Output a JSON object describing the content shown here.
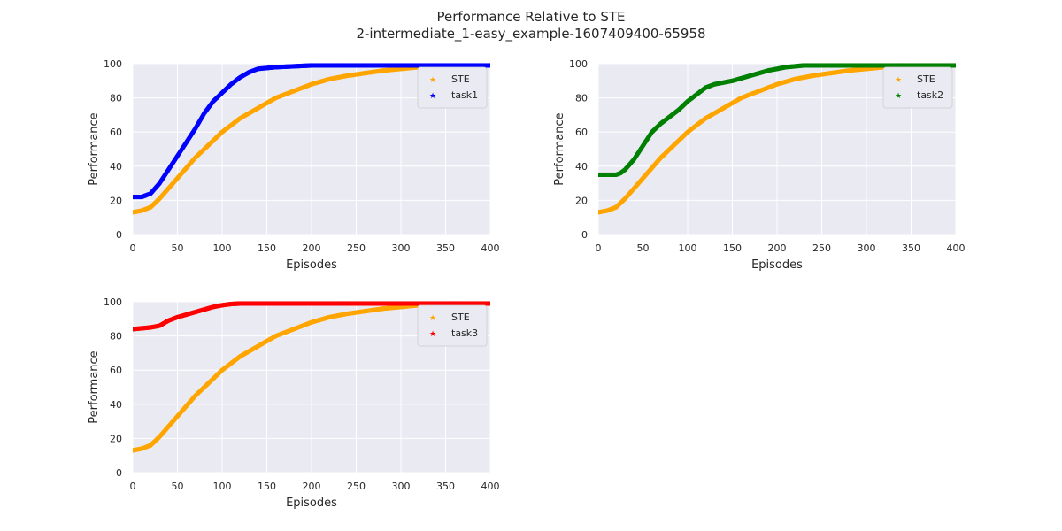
{
  "figure": {
    "title": "Performance Relative to STE",
    "subtitle": "2-intermediate_1-easy_example-1607409400-65958"
  },
  "colors": {
    "STE": "#ffa500",
    "task1": "#0000ff",
    "task2": "#008000",
    "task3": "#ff0000",
    "axes_bg": "#eaeaf2",
    "grid": "#ffffff"
  },
  "chart_data": [
    {
      "type": "scatter",
      "xlabel": "Episodes",
      "ylabel": "Performance",
      "xlim": [
        0,
        400
      ],
      "ylim": [
        0,
        100
      ],
      "xticks": [
        0,
        50,
        100,
        150,
        200,
        250,
        300,
        350,
        400
      ],
      "yticks": [
        0,
        20,
        40,
        60,
        80,
        100
      ],
      "grid": true,
      "legend_position": "top-right",
      "series": [
        {
          "name": "STE",
          "color": "#ffa500",
          "x": [
            0,
            10,
            20,
            30,
            40,
            50,
            60,
            70,
            80,
            90,
            100,
            120,
            140,
            160,
            180,
            200,
            220,
            240,
            260,
            280,
            300,
            320,
            340,
            360
          ],
          "y": [
            13,
            14,
            16,
            21,
            27,
            33,
            39,
            45,
            50,
            55,
            60,
            68,
            74,
            80,
            84,
            88,
            91,
            93,
            94.5,
            96,
            97,
            98,
            98,
            98.5
          ]
        },
        {
          "name": "task1",
          "color": "#0000ff",
          "x": [
            0,
            10,
            20,
            30,
            40,
            50,
            60,
            70,
            80,
            90,
            100,
            110,
            120,
            130,
            140,
            150,
            160,
            180,
            200,
            250,
            300,
            350,
            400
          ],
          "y": [
            22,
            22,
            24,
            30,
            38,
            46,
            54,
            62,
            71,
            78,
            83,
            88,
            92,
            95,
            97,
            97.5,
            98,
            98.5,
            99,
            99,
            99,
            99,
            99
          ]
        }
      ]
    },
    {
      "type": "scatter",
      "xlabel": "Episodes",
      "ylabel": "Performance",
      "xlim": [
        0,
        400
      ],
      "ylim": [
        0,
        100
      ],
      "xticks": [
        0,
        50,
        100,
        150,
        200,
        250,
        300,
        350,
        400
      ],
      "yticks": [
        0,
        20,
        40,
        60,
        80,
        100
      ],
      "grid": true,
      "legend_position": "top-right",
      "series": [
        {
          "name": "STE",
          "color": "#ffa500",
          "x": [
            0,
            10,
            20,
            30,
            40,
            50,
            60,
            70,
            80,
            90,
            100,
            120,
            140,
            160,
            180,
            200,
            220,
            240,
            260,
            280,
            300,
            320,
            340,
            360
          ],
          "y": [
            13,
            14,
            16,
            21,
            27,
            33,
            39,
            45,
            50,
            55,
            60,
            68,
            74,
            80,
            84,
            88,
            91,
            93,
            94.5,
            96,
            97,
            98,
            98,
            98.5
          ]
        },
        {
          "name": "task2",
          "color": "#008000",
          "x": [
            0,
            10,
            20,
            25,
            30,
            40,
            50,
            60,
            70,
            80,
            90,
            100,
            110,
            120,
            130,
            150,
            170,
            190,
            210,
            230,
            250,
            300,
            350,
            400
          ],
          "y": [
            35,
            35,
            35,
            36,
            38,
            44,
            52,
            60,
            65,
            69,
            73,
            78,
            82,
            86,
            88,
            90,
            93,
            96,
            98,
            99,
            99,
            99,
            99,
            99
          ]
        }
      ]
    },
    {
      "type": "scatter",
      "xlabel": "Episodes",
      "ylabel": "Performance",
      "xlim": [
        0,
        400
      ],
      "ylim": [
        0,
        100
      ],
      "xticks": [
        0,
        50,
        100,
        150,
        200,
        250,
        300,
        350,
        400
      ],
      "yticks": [
        0,
        20,
        40,
        60,
        80,
        100
      ],
      "grid": true,
      "legend_position": "top-right",
      "series": [
        {
          "name": "STE",
          "color": "#ffa500",
          "x": [
            0,
            10,
            20,
            30,
            40,
            50,
            60,
            70,
            80,
            90,
            100,
            120,
            140,
            160,
            180,
            200,
            220,
            240,
            260,
            280,
            300,
            320,
            340,
            360
          ],
          "y": [
            13,
            14,
            16,
            21,
            27,
            33,
            39,
            45,
            50,
            55,
            60,
            68,
            74,
            80,
            84,
            88,
            91,
            93,
            94.5,
            96,
            97,
            98,
            98,
            98.5
          ]
        },
        {
          "name": "task3",
          "color": "#ff0000",
          "x": [
            0,
            10,
            20,
            30,
            40,
            50,
            60,
            70,
            80,
            90,
            100,
            110,
            120,
            130,
            150,
            200,
            250,
            300,
            350,
            400
          ],
          "y": [
            84,
            84.5,
            85,
            86,
            89,
            91,
            92.5,
            94,
            95.5,
            97,
            98,
            98.7,
            99,
            99,
            99,
            99,
            99,
            99,
            99,
            99
          ]
        }
      ]
    }
  ]
}
